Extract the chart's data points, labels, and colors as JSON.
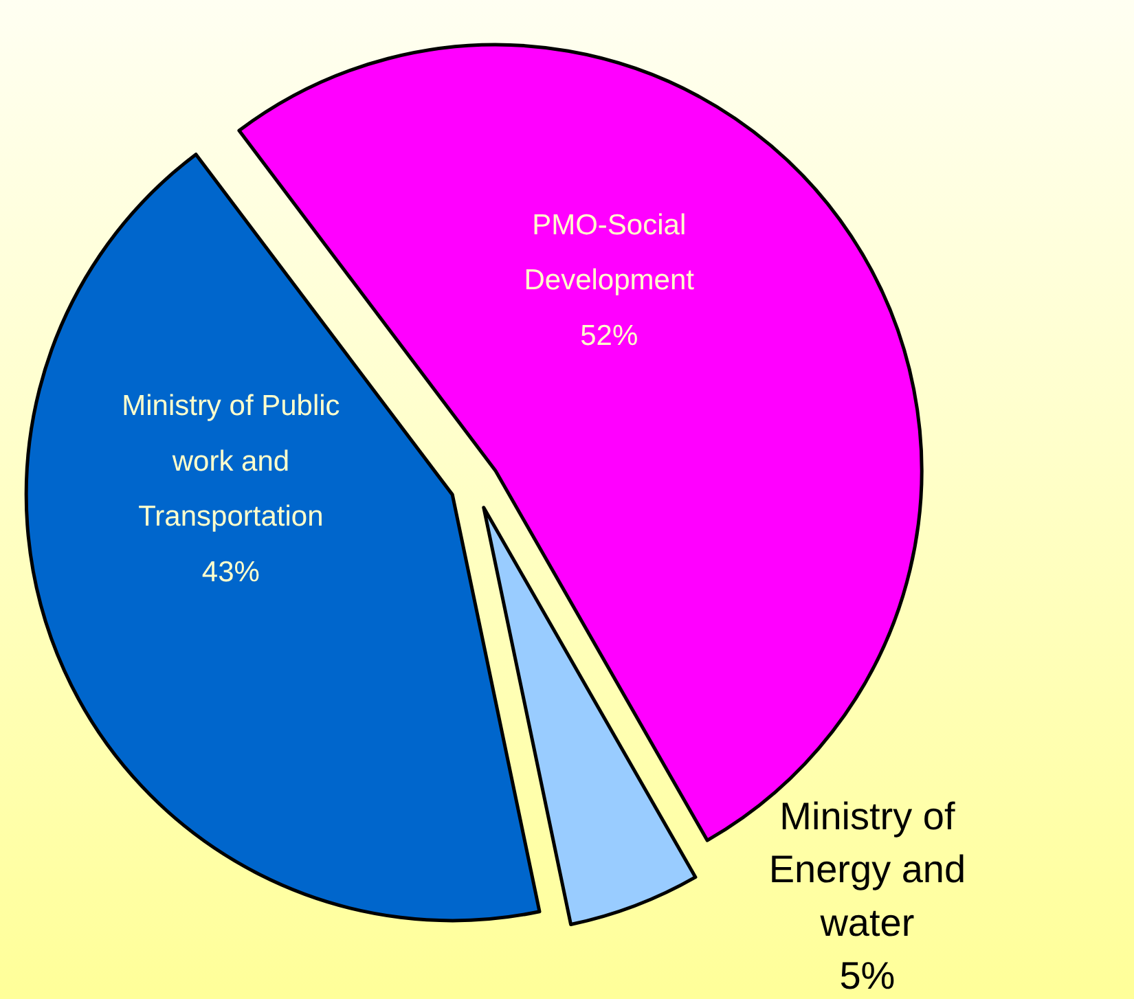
{
  "chart_data": {
    "type": "pie",
    "categories": [
      "PMO-Social Development",
      "Ministry of Energy and water",
      "Ministry of Public work and Transportation"
    ],
    "values": [
      52,
      5,
      43
    ],
    "colors": [
      "#ff00ff",
      "#99ccff",
      "#0066cc"
    ],
    "value_labels": [
      "52%",
      "5%",
      "43%"
    ]
  }
}
